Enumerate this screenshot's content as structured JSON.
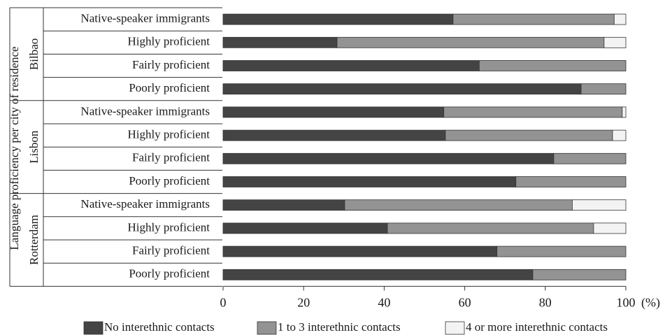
{
  "chart_data": {
    "type": "bar",
    "orientation": "horizontal",
    "stacked": true,
    "title": "",
    "ylabel": "Language proficiency per city of residence",
    "xlabel": "",
    "x_unit": "(%)",
    "xlim": [
      0,
      100
    ],
    "x_ticks": [
      "0",
      "20",
      "40",
      "60",
      "80",
      "100"
    ],
    "grid": false,
    "legend_position": "bottom",
    "groups": [
      {
        "name": "Bilbao",
        "categories": [
          "Native-speaker immigrants",
          "Highly proficient",
          "Fairly proficient",
          "Poorly proficient"
        ]
      },
      {
        "name": "Lisbon",
        "categories": [
          "Native-speaker immigrants",
          "Highly proficient",
          "Fairly proficient",
          "Poorly proficient"
        ]
      },
      {
        "name": "Rotterdam",
        "categories": [
          "Native-speaker immigrants",
          "Highly proficient",
          "Fairly proficient",
          "Poorly proficient"
        ]
      }
    ],
    "series": [
      {
        "name": "No interethnic contacts",
        "color": "#444444",
        "values": [
          57.1,
          28.3,
          63.6,
          88.9,
          54.8,
          55.2,
          82.1,
          72.7,
          30.2,
          40.8,
          68.0,
          76.9
        ]
      },
      {
        "name": "1 to 3 interethnic contacts",
        "color": "#939393",
        "values": [
          40.0,
          66.3,
          36.4,
          11.1,
          44.3,
          41.5,
          17.9,
          27.3,
          56.5,
          51.2,
          32.0,
          23.1
        ]
      },
      {
        "name": "4 or more interethnic contacts",
        "color": "#f3f3f3",
        "values": [
          2.9,
          5.4,
          0,
          0,
          0.9,
          3.3,
          0,
          0,
          13.3,
          8.0,
          0,
          0
        ]
      }
    ]
  }
}
